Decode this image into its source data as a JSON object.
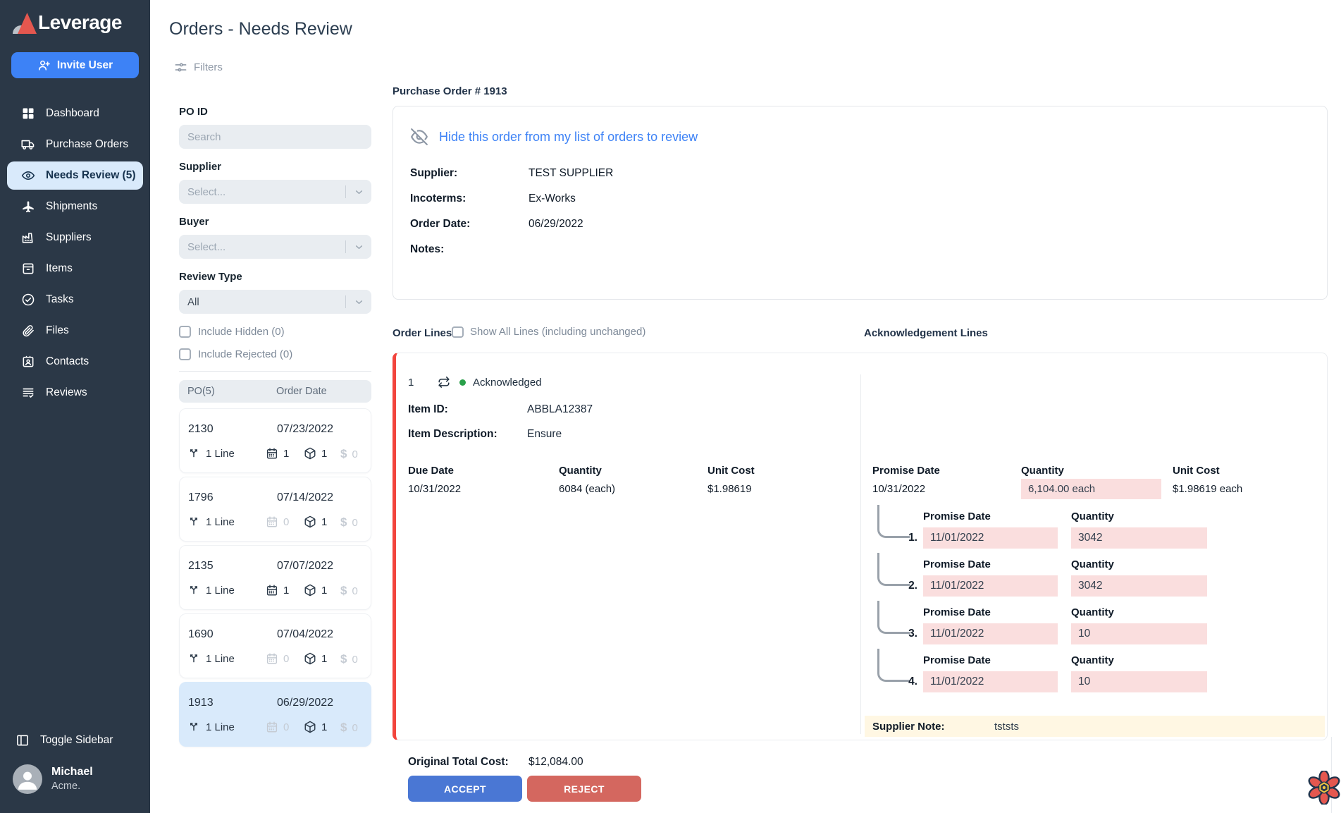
{
  "colors": {
    "accent": "#3D82F6",
    "sidebar_bg": "#2B3847",
    "selected_item_bg": "#D9EAFB",
    "selected_item_text": "#16324E",
    "link_blue": "#3D82F6",
    "accept": "#4A77D4",
    "reject": "#D4675F",
    "change_highlight": "#FADEDE",
    "note_highlight": "#FFF7E3",
    "status_green": "#2AA04A",
    "line_alert_red": "#F2453D"
  },
  "icons": {
    "dollar": "$"
  },
  "sidebar": {
    "brand": "Leverage",
    "invite_button": "Invite User",
    "items": [
      {
        "label": "Dashboard"
      },
      {
        "label": "Purchase Orders"
      },
      {
        "label": "Needs Review (5)"
      },
      {
        "label": "Shipments"
      },
      {
        "label": "Suppliers"
      },
      {
        "label": "Items"
      },
      {
        "label": "Tasks"
      },
      {
        "label": "Files"
      },
      {
        "label": "Contacts"
      },
      {
        "label": "Reviews"
      }
    ],
    "toggle_label": "Toggle Sidebar",
    "user": {
      "name": "Michael",
      "org": "Acme."
    }
  },
  "header": {
    "title": "Orders - Needs Review",
    "filters_label": "Filters"
  },
  "filters": {
    "po_id": {
      "label": "PO ID",
      "placeholder": "Search"
    },
    "supplier": {
      "label": "Supplier",
      "value": "Select..."
    },
    "buyer": {
      "label": "Buyer",
      "value": "Select..."
    },
    "review_type": {
      "label": "Review Type",
      "value": "All"
    },
    "include_hidden": "Include Hidden (0)",
    "include_rejected": "Include Rejected (0)",
    "list_header": {
      "po": "PO(5)",
      "order_date": "Order Date"
    }
  },
  "po_list": [
    {
      "id": "2130",
      "date": "07/23/2022",
      "lines": "1 Line",
      "calendar": "1",
      "calendar_active": true,
      "packages": "1",
      "dollars": "0",
      "selected": false
    },
    {
      "id": "1796",
      "date": "07/14/2022",
      "lines": "1 Line",
      "calendar": "0",
      "calendar_active": false,
      "packages": "1",
      "dollars": "0",
      "selected": false
    },
    {
      "id": "2135",
      "date": "07/07/2022",
      "lines": "1 Line",
      "calendar": "1",
      "calendar_active": true,
      "packages": "1",
      "dollars": "0",
      "selected": false
    },
    {
      "id": "1690",
      "date": "07/04/2022",
      "lines": "1 Line",
      "calendar": "0",
      "calendar_active": false,
      "packages": "1",
      "dollars": "0",
      "selected": false
    },
    {
      "id": "1913",
      "date": "06/29/2022",
      "lines": "1 Line",
      "calendar": "0",
      "calendar_active": false,
      "packages": "1",
      "dollars": "0",
      "selected": true
    }
  ],
  "order": {
    "title": "Purchase Order # 1913",
    "hide_link": "Hide this order from my list of orders to review",
    "fields": [
      {
        "label": "Supplier:",
        "value": "TEST SUPPLIER"
      },
      {
        "label": "Incoterms:",
        "value": "Ex-Works"
      },
      {
        "label": "Order Date:",
        "value": "06/29/2022"
      },
      {
        "label": "Notes:",
        "value": ""
      }
    ]
  },
  "order_lines": {
    "section_title": "Order Lines",
    "show_all_label": "Show All Lines (including unchanged)",
    "line": {
      "number": "1",
      "status": "Acknowledged",
      "item_id_label": "Item ID:",
      "item_id": "ABBLA12387",
      "item_desc_label": "Item Description:",
      "item_desc": "Ensure",
      "due_date_label": "Due Date",
      "due_date": "10/31/2022",
      "quantity_label": "Quantity",
      "quantity": "6084 (each)",
      "unit_cost_label": "Unit Cost",
      "unit_cost": "$1.98619"
    },
    "original_total_label": "Original Total Cost:",
    "original_total": "$12,084.00",
    "accept_label": "ACCEPT",
    "reject_label": "REJECT"
  },
  "ack_lines": {
    "section_title": "Acknowledgement Lines",
    "promise_date_label": "Promise Date",
    "quantity_label": "Quantity",
    "unit_cost_label": "Unit Cost",
    "promise_date": "10/31/2022",
    "quantity": "6,104.00 each",
    "unit_cost": "$1.98619 each",
    "sub_lines": [
      {
        "n": "1.",
        "promise_date": "11/01/2022",
        "quantity": "3042"
      },
      {
        "n": "2.",
        "promise_date": "11/01/2022",
        "quantity": "3042"
      },
      {
        "n": "3.",
        "promise_date": "11/01/2022",
        "quantity": "10"
      },
      {
        "n": "4.",
        "promise_date": "11/01/2022",
        "quantity": "10"
      }
    ],
    "supplier_note_label": "Supplier Note:",
    "supplier_note": "tststs"
  }
}
